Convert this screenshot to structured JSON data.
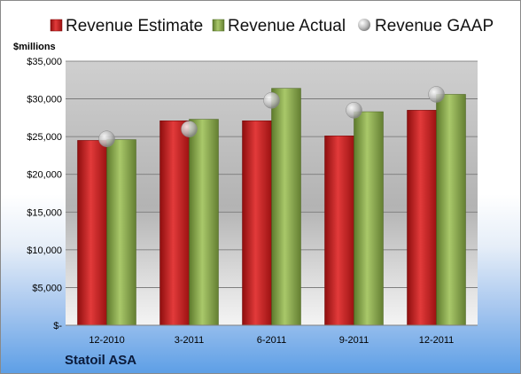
{
  "company": "Statoil ASA",
  "chart_data": {
    "type": "bar",
    "ylabel": "$millions",
    "categories": [
      "12-2010",
      "3-2011",
      "6-2011",
      "9-2011",
      "12-2011"
    ],
    "ylim": [
      0,
      35000
    ],
    "yticks": [
      0,
      5000,
      10000,
      15000,
      20000,
      25000,
      30000,
      35000
    ],
    "ytick_labels": [
      "$-",
      "$5,000",
      "$10,000",
      "$15,000",
      "$20,000",
      "$25,000",
      "$30,000",
      "$35,000"
    ],
    "grid": true,
    "legend": "top",
    "series": [
      {
        "name": "Revenue Estimate",
        "type": "bar",
        "color": "#c81e1e",
        "values": [
          24500,
          27100,
          27100,
          25100,
          28500
        ]
      },
      {
        "name": "Revenue Actual",
        "type": "bar",
        "color": "#86a84a",
        "values": [
          24600,
          27300,
          31400,
          28300,
          30600
        ]
      },
      {
        "name": "Revenue GAAP",
        "type": "scatter",
        "color": "#b8b8b8",
        "values": [
          24700,
          26000,
          29800,
          28500,
          30600
        ]
      }
    ]
  }
}
